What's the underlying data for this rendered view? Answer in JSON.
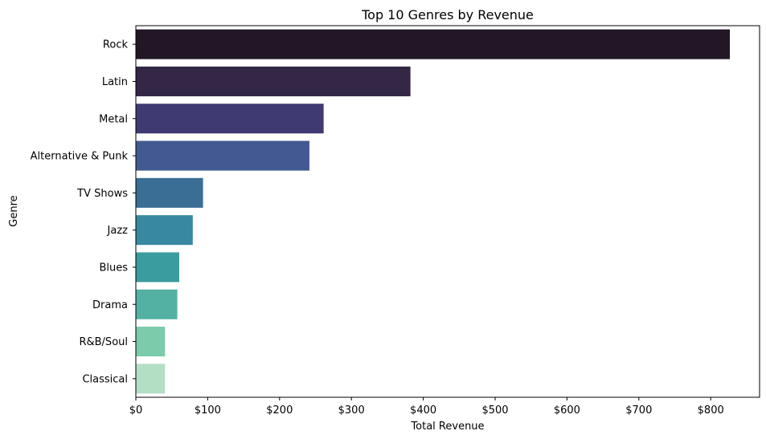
{
  "chart_data": {
    "type": "bar",
    "orientation": "horizontal",
    "title": "Top 10 Genres by Revenue",
    "xlabel": "Total Revenue",
    "ylabel": "Genre",
    "categories": [
      "Rock",
      "Latin",
      "Metal",
      "Alternative & Punk",
      "TV Shows",
      "Jazz",
      "Blues",
      "Drama",
      "R&B/Soul",
      "Classical"
    ],
    "values": [
      826.65,
      382.14,
      261.36,
      241.56,
      93.53,
      79.2,
      60.39,
      57.71,
      40.59,
      40.59
    ],
    "xlim": [
      0,
      868
    ],
    "xticks": [
      0,
      100,
      200,
      300,
      400,
      500,
      600,
      700,
      800
    ],
    "xtick_labels": [
      "$0",
      "$100",
      "$200",
      "$300",
      "$400",
      "$500",
      "$600",
      "$700",
      "$800"
    ],
    "colors": [
      "#221726",
      "#332745",
      "#403a73",
      "#425a91",
      "#3a6e95",
      "#3788a0",
      "#3a9c9f",
      "#52b1a2",
      "#7ccbaa",
      "#b3dfc5"
    ],
    "grid": false,
    "legend": "none"
  }
}
